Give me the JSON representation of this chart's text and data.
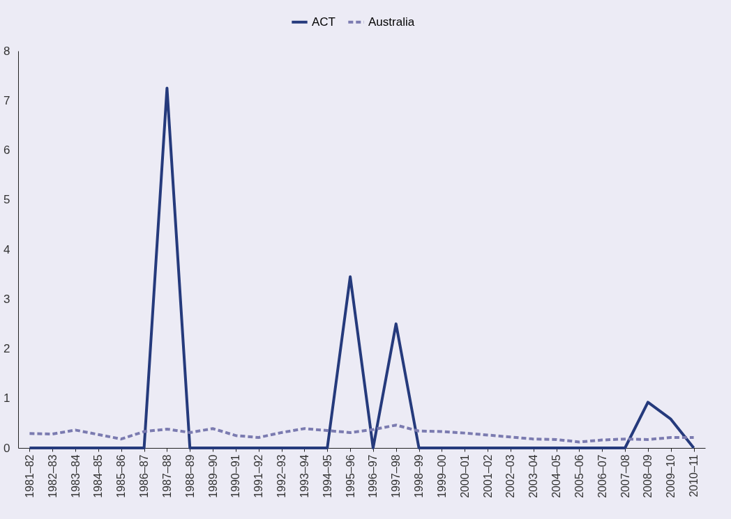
{
  "chart_data": {
    "type": "line",
    "categories": [
      "1981–82",
      "1982–83",
      "1983–84",
      "1984–85",
      "1985–86",
      "1986–87",
      "1987–88",
      "1988–89",
      "1989–90",
      "1990–91",
      "1991–92",
      "1992–93",
      "1993–94",
      "1994–95",
      "1995–96",
      "1996–97",
      "1997–98",
      "1998–99",
      "1999–00",
      "2000–01",
      "2001–02",
      "2002–03",
      "2003–04",
      "2004–05",
      "2005–06",
      "2006–07",
      "2007–08",
      "2008–09",
      "2009–10",
      "2010–11"
    ],
    "series": [
      {
        "name": "ACT",
        "color": "#253a7c",
        "line_style": "solid",
        "values": [
          0,
          0,
          0,
          0,
          0,
          0,
          7.25,
          0,
          0,
          0,
          0,
          0,
          0,
          0,
          3.45,
          0,
          2.5,
          0,
          0,
          0,
          0,
          0,
          0,
          0,
          0,
          0,
          0,
          0.92,
          0.58,
          0
        ]
      },
      {
        "name": "Australia",
        "color": "#7b7bb0",
        "line_style": "dashed",
        "values": [
          0.29,
          0.28,
          0.36,
          0.27,
          0.18,
          0.33,
          0.38,
          0.31,
          0.39,
          0.25,
          0.21,
          0.31,
          0.39,
          0.35,
          0.31,
          0.37,
          0.46,
          0.34,
          0.33,
          0.3,
          0.26,
          0.22,
          0.18,
          0.17,
          0.12,
          0.16,
          0.18,
          0.17,
          0.21,
          0.21
        ]
      }
    ],
    "ylim": [
      0,
      8
    ],
    "yticks": [
      0,
      1,
      2,
      3,
      4,
      5,
      6,
      7,
      8
    ],
    "grid": false,
    "legend": "top",
    "marker": "none"
  }
}
